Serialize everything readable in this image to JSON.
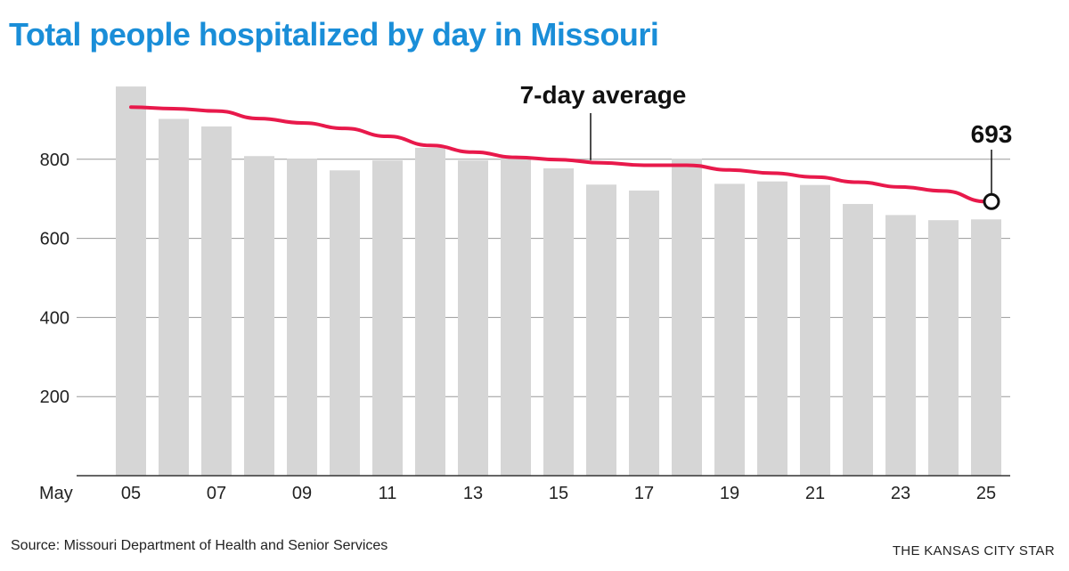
{
  "title": "Total people hospitalized by day in Missouri",
  "source": "Source: Missouri Department of Health and Senior Services",
  "brand": "THE KANSAS CITY STAR",
  "colors": {
    "title": "#1a8ed8",
    "bars": "#d6d6d6",
    "line": "#e8194b",
    "grid": "#999999",
    "text": "#222222"
  },
  "chart_data": {
    "type": "bar",
    "x_prefix_label": "May",
    "categories": [
      "05",
      "06",
      "07",
      "08",
      "09",
      "10",
      "11",
      "12",
      "13",
      "14",
      "15",
      "16",
      "17",
      "18",
      "19",
      "20",
      "21",
      "22",
      "23",
      "24",
      "25"
    ],
    "tick_labels": [
      "05",
      "07",
      "09",
      "11",
      "13",
      "15",
      "17",
      "19",
      "21",
      "23",
      "25"
    ],
    "series": [
      {
        "type": "bar",
        "values": [
          984,
          902,
          883,
          808,
          801,
          772,
          797,
          829,
          797,
          804,
          777,
          736,
          721,
          801,
          738,
          744,
          735,
          687,
          659,
          646,
          648
        ]
      },
      {
        "name": "7-day average",
        "type": "line",
        "values": [
          932,
          928,
          922,
          903,
          892,
          878,
          858,
          835,
          818,
          805,
          799,
          791,
          785,
          785,
          773,
          765,
          755,
          742,
          730,
          720,
          693
        ]
      }
    ],
    "annotations": [
      {
        "label": "7-day average",
        "target_index": 11
      },
      {
        "label": "693",
        "target_index": 20
      }
    ],
    "ylim": [
      0,
      1000
    ],
    "yticks": [
      200,
      400,
      600,
      800
    ],
    "grid": true
  }
}
